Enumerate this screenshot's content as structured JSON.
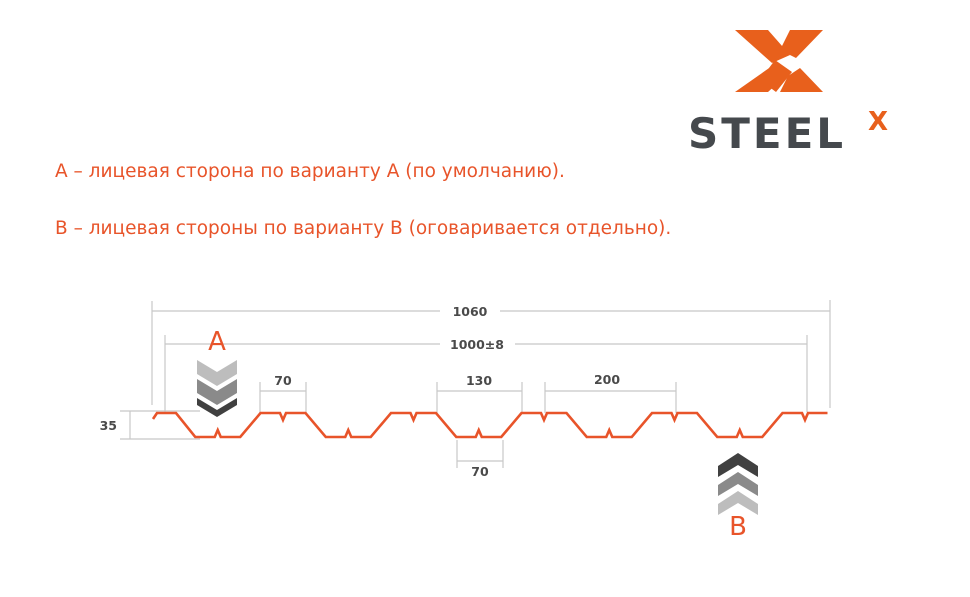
{
  "logo": {
    "text": "STEEL",
    "superscript": "X",
    "colors": {
      "orange": "#e8601c",
      "gray": "#45494d"
    }
  },
  "notes": [
    "А – лицевая сторона по варианту А (по умолчанию).",
    "В – лицевая стороны по варианту В (оговаривается отдельно)."
  ],
  "diagram": {
    "profile_color": "#e8542a",
    "dimensions": {
      "total_width": "1060",
      "working_width": "1000±8",
      "top_width": "70",
      "groove_opening": "130",
      "pitch": "200",
      "bottom_width": "70",
      "height": "35"
    },
    "side_a": {
      "label": "A",
      "direction": "down"
    },
    "side_b": {
      "label": "B",
      "direction": "up"
    }
  }
}
